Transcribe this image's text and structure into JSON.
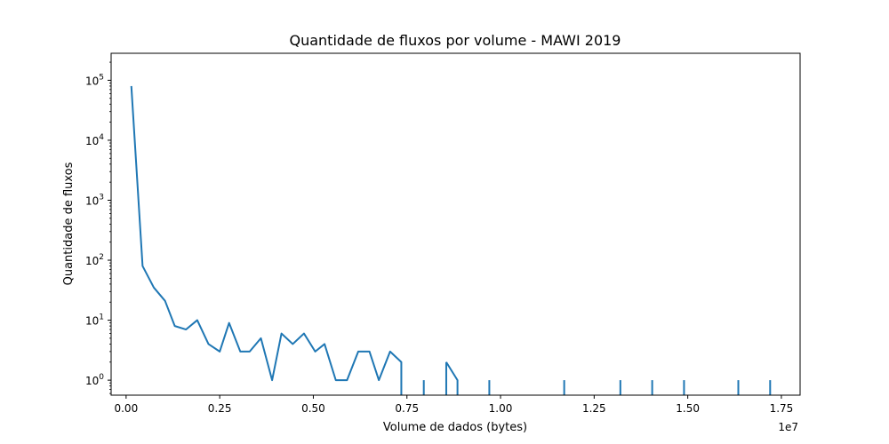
{
  "chart_data": {
    "type": "line",
    "title": "Quantidade de fluxos por volume - MAWI 2019",
    "xlabel": "Volume de dados (bytes)",
    "ylabel": "Quantidade de fluxos",
    "x_offset_label": "1e7",
    "xlim": [
      -400000,
      18000000
    ],
    "ylim_log10": [
      -0.25,
      5.45
    ],
    "yscale": "log",
    "grid": false,
    "line_color": "#1f77b4",
    "x_ticks": [
      {
        "value": 0,
        "label": "0.00"
      },
      {
        "value": 2500000,
        "label": "0.25"
      },
      {
        "value": 5000000,
        "label": "0.50"
      },
      {
        "value": 7500000,
        "label": "0.75"
      },
      {
        "value": 10000000,
        "label": "1.00"
      },
      {
        "value": 12500000,
        "label": "1.25"
      },
      {
        "value": 15000000,
        "label": "1.50"
      },
      {
        "value": 17500000,
        "label": "1.75"
      }
    ],
    "y_ticks": [
      {
        "exp": 0,
        "label_base": "10",
        "label_exp": "0"
      },
      {
        "exp": 1,
        "label_base": "10",
        "label_exp": "1"
      },
      {
        "exp": 2,
        "label_base": "10",
        "label_exp": "2"
      },
      {
        "exp": 3,
        "label_base": "10",
        "label_exp": "3"
      },
      {
        "exp": 4,
        "label_base": "10",
        "label_exp": "4"
      },
      {
        "exp": 5,
        "label_base": "10",
        "label_exp": "5"
      }
    ],
    "series": [
      {
        "name": "fluxos",
        "segments": [
          {
            "x": [
              140000,
              440000,
              740000,
              1040000,
              1300000,
              1600000,
              1900000,
              2200000,
              2500000,
              2750000,
              3050000,
              3300000,
              3600000,
              3900000,
              4150000,
              4450000,
              4750000,
              5050000,
              5300000,
              5600000,
              5900000,
              6200000,
              6500000,
              6750000,
              7050000,
              7350000,
              7350000
            ],
            "y": [
              80000,
              80,
              35,
              21,
              8,
              7,
              10,
              4,
              3,
              9,
              3,
              3,
              5,
              1,
              6,
              4,
              6,
              3,
              4,
              1,
              1,
              3,
              3,
              1,
              3,
              2,
              0.5
            ]
          },
          {
            "x": [
              7950000,
              7950000
            ],
            "y": [
              1,
              0.5
            ]
          },
          {
            "x": [
              8550000,
              8850000,
              8850000
            ],
            "y": [
              2,
              1,
              0.5
            ]
          },
          {
            "x": [
              8550000,
              8550000
            ],
            "y": [
              2,
              0.5
            ]
          },
          {
            "x": [
              9700000,
              9700000
            ],
            "y": [
              1,
              0.5
            ]
          },
          {
            "x": [
              11700000,
              11700000
            ],
            "y": [
              1,
              0.5
            ]
          },
          {
            "x": [
              13200000,
              13200000
            ],
            "y": [
              1,
              0.5
            ]
          },
          {
            "x": [
              14050000,
              14050000
            ],
            "y": [
              1,
              0.5
            ]
          },
          {
            "x": [
              14900000,
              14900000
            ],
            "y": [
              1,
              0.5
            ]
          },
          {
            "x": [
              16350000,
              16350000
            ],
            "y": [
              1,
              0.5
            ]
          },
          {
            "x": [
              17200000,
              17200000
            ],
            "y": [
              1,
              0.5
            ]
          }
        ]
      }
    ]
  }
}
